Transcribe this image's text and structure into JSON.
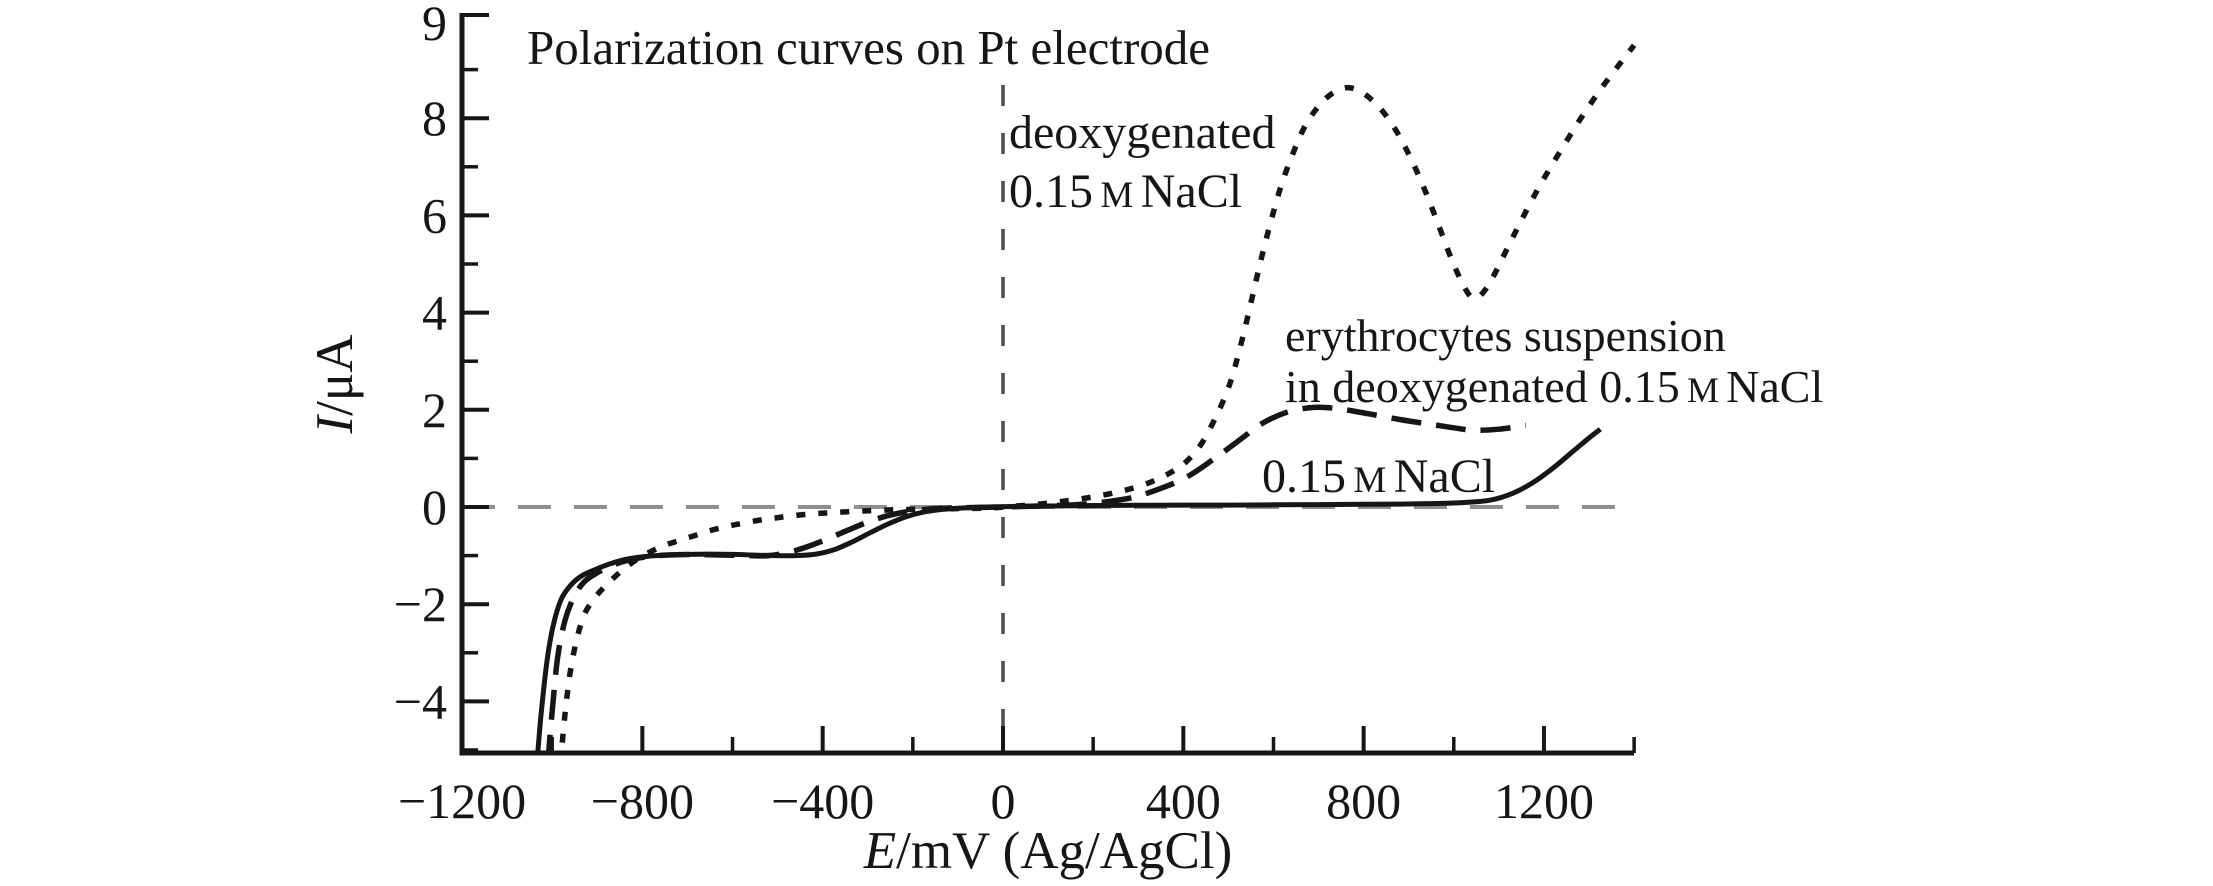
{
  "title": "Polarization curves on Pt electrode",
  "colors": {
    "curve": "#161616",
    "axis": "#161616",
    "zero_line": "#8f8f8f",
    "vertical_line": "#4f4f4f",
    "background": "#ffffff"
  },
  "annotations": [
    {
      "id": "deoxygenated-nacl",
      "series": "dotted",
      "lines": [
        "deoxygenated",
        "0.15 M NaCl"
      ]
    },
    {
      "id": "erythrocytes-suspension",
      "series": "dashed",
      "lines": [
        "erythrocytes suspension",
        "in deoxygenated 0.15 M NaCl"
      ]
    },
    {
      "id": "nacl",
      "series": "solid",
      "lines": [
        "0.15 M NaCl"
      ]
    }
  ],
  "chart_data": {
    "type": "line",
    "title": "Polarization curves on Pt electrode",
    "xlabel": "E/mV (Ag/AgCl)",
    "ylabel": "I/μA",
    "xlim": [
      -1200,
      1400
    ],
    "ylim": [
      -5,
      10
    ],
    "grid": false,
    "legend_position": "inline-annotations",
    "x_axis": {
      "major_ticks": [
        -1200,
        -800,
        -400,
        0,
        400,
        800,
        1200
      ],
      "minor_ticks": [
        -1000,
        -600,
        -200,
        200,
        600,
        1000,
        1400
      ],
      "tick_labels": [
        "−1200",
        "−800",
        "−400",
        "0",
        "400",
        "800",
        "1200"
      ]
    },
    "y_axis": {
      "major_ticks": [
        -4,
        -2,
        0,
        2,
        4,
        6,
        8
      ],
      "minor_ticks": [
        -5,
        -3,
        -1,
        1,
        3,
        5,
        7,
        9
      ],
      "tick_labels": [
        "−4",
        "−2",
        "0",
        "2",
        "4",
        "6",
        "8"
      ],
      "top_end_label": "9"
    },
    "reference_lines": {
      "horizontal_at_I": 0,
      "vertical_at_E": 0
    },
    "series": [
      {
        "name": "deoxygenated 0.15 M NaCl",
        "style": "dotted",
        "points": [
          [
            -982,
            -5.3
          ],
          [
            -972,
            -4.3
          ],
          [
            -960,
            -3.4
          ],
          [
            -945,
            -2.7
          ],
          [
            -928,
            -2.2
          ],
          [
            -908,
            -1.9
          ],
          [
            -888,
            -1.68
          ],
          [
            -866,
            -1.48
          ],
          [
            -842,
            -1.28
          ],
          [
            -820,
            -1.13
          ],
          [
            -798,
            -1.0
          ],
          [
            -773,
            -0.88
          ],
          [
            -745,
            -0.77
          ],
          [
            -712,
            -0.67
          ],
          [
            -678,
            -0.57
          ],
          [
            -643,
            -0.47
          ],
          [
            -608,
            -0.39
          ],
          [
            -575,
            -0.33
          ],
          [
            -540,
            -0.27
          ],
          [
            -508,
            -0.23
          ],
          [
            -475,
            -0.19
          ],
          [
            -440,
            -0.155
          ],
          [
            -405,
            -0.13
          ],
          [
            -370,
            -0.11
          ],
          [
            -330,
            -0.09
          ],
          [
            -290,
            -0.075
          ],
          [
            -250,
            -0.06
          ],
          [
            -210,
            -0.05
          ],
          [
            -170,
            -0.045
          ],
          [
            -130,
            -0.04
          ],
          [
            -90,
            -0.03
          ],
          [
            -50,
            -0.025
          ],
          [
            -10,
            -0.01
          ],
          [
            30,
            0.02
          ],
          [
            70,
            0.05
          ],
          [
            110,
            0.09
          ],
          [
            150,
            0.14
          ],
          [
            195,
            0.2
          ],
          [
            240,
            0.28
          ],
          [
            285,
            0.38
          ],
          [
            330,
            0.52
          ],
          [
            370,
            0.7
          ],
          [
            405,
            0.92
          ],
          [
            440,
            1.3
          ],
          [
            472,
            1.85
          ],
          [
            498,
            2.4
          ],
          [
            515,
            2.9
          ],
          [
            532,
            3.5
          ],
          [
            550,
            4.2
          ],
          [
            570,
            5.0
          ],
          [
            592,
            5.8
          ],
          [
            615,
            6.55
          ],
          [
            640,
            7.2
          ],
          [
            668,
            7.8
          ],
          [
            700,
            8.25
          ],
          [
            732,
            8.52
          ],
          [
            765,
            8.63
          ],
          [
            798,
            8.52
          ],
          [
            832,
            8.25
          ],
          [
            865,
            7.85
          ],
          [
            898,
            7.3
          ],
          [
            930,
            6.65
          ],
          [
            962,
            5.9
          ],
          [
            995,
            5.1
          ],
          [
            1022,
            4.55
          ],
          [
            1042,
            4.3
          ],
          [
            1062,
            4.38
          ],
          [
            1085,
            4.7
          ],
          [
            1115,
            5.25
          ],
          [
            1150,
            5.9
          ],
          [
            1190,
            6.6
          ],
          [
            1235,
            7.3
          ],
          [
            1282,
            8.0
          ],
          [
            1330,
            8.65
          ],
          [
            1375,
            9.2
          ],
          [
            1400,
            9.5
          ]
        ]
      },
      {
        "name": "erythrocytes suspension in deoxygenated 0.15 M NaCl",
        "style": "dashed",
        "points": [
          [
            -1010,
            -5.3
          ],
          [
            -1000,
            -4.2
          ],
          [
            -988,
            -3.1
          ],
          [
            -972,
            -2.35
          ],
          [
            -952,
            -1.85
          ],
          [
            -930,
            -1.55
          ],
          [
            -905,
            -1.38
          ],
          [
            -878,
            -1.25
          ],
          [
            -845,
            -1.13
          ],
          [
            -808,
            -1.05
          ],
          [
            -765,
            -1.0
          ],
          [
            -715,
            -0.98
          ],
          [
            -665,
            -0.98
          ],
          [
            -615,
            -0.99
          ],
          [
            -565,
            -1.0
          ],
          [
            -520,
            -1.0
          ],
          [
            -475,
            -0.93
          ],
          [
            -435,
            -0.82
          ],
          [
            -395,
            -0.68
          ],
          [
            -350,
            -0.5
          ],
          [
            -305,
            -0.33
          ],
          [
            -260,
            -0.19
          ],
          [
            -215,
            -0.1
          ],
          [
            -170,
            -0.05
          ],
          [
            -120,
            -0.02
          ],
          [
            -60,
            -0.01
          ],
          [
            0,
            0.0
          ],
          [
            80,
            0.02
          ],
          [
            165,
            0.05
          ],
          [
            230,
            0.11
          ],
          [
            290,
            0.2
          ],
          [
            355,
            0.4
          ],
          [
            410,
            0.63
          ],
          [
            465,
            0.97
          ],
          [
            525,
            1.38
          ],
          [
            575,
            1.72
          ],
          [
            630,
            1.95
          ],
          [
            690,
            2.05
          ],
          [
            745,
            2.02
          ],
          [
            810,
            1.92
          ],
          [
            880,
            1.8
          ],
          [
            950,
            1.7
          ],
          [
            1000,
            1.63
          ],
          [
            1045,
            1.58
          ],
          [
            1100,
            1.6
          ],
          [
            1160,
            1.68
          ]
        ]
      },
      {
        "name": "0.15 M NaCl",
        "style": "solid",
        "points": [
          [
            -1034,
            -5.3
          ],
          [
            -1025,
            -4.3
          ],
          [
            -1012,
            -3.2
          ],
          [
            -998,
            -2.45
          ],
          [
            -980,
            -1.9
          ],
          [
            -958,
            -1.6
          ],
          [
            -935,
            -1.42
          ],
          [
            -908,
            -1.3
          ],
          [
            -875,
            -1.18
          ],
          [
            -838,
            -1.08
          ],
          [
            -795,
            -1.02
          ],
          [
            -748,
            -0.99
          ],
          [
            -700,
            -0.975
          ],
          [
            -650,
            -0.97
          ],
          [
            -600,
            -0.975
          ],
          [
            -550,
            -0.99
          ],
          [
            -505,
            -1.0
          ],
          [
            -460,
            -1.0
          ],
          [
            -415,
            -0.97
          ],
          [
            -375,
            -0.88
          ],
          [
            -335,
            -0.72
          ],
          [
            -295,
            -0.53
          ],
          [
            -255,
            -0.35
          ],
          [
            -215,
            -0.2
          ],
          [
            -175,
            -0.1
          ],
          [
            -135,
            -0.05
          ],
          [
            -90,
            -0.02
          ],
          [
            -40,
            0.0
          ],
          [
            20,
            0.01
          ],
          [
            100,
            0.02
          ],
          [
            200,
            0.03
          ],
          [
            300,
            0.035
          ],
          [
            400,
            0.04
          ],
          [
            500,
            0.04
          ],
          [
            600,
            0.045
          ],
          [
            700,
            0.05
          ],
          [
            800,
            0.055
          ],
          [
            880,
            0.06
          ],
          [
            950,
            0.07
          ],
          [
            1020,
            0.09
          ],
          [
            1080,
            0.14
          ],
          [
            1130,
            0.28
          ],
          [
            1175,
            0.5
          ],
          [
            1220,
            0.8
          ],
          [
            1265,
            1.15
          ],
          [
            1300,
            1.42
          ],
          [
            1325,
            1.6
          ]
        ]
      }
    ]
  }
}
